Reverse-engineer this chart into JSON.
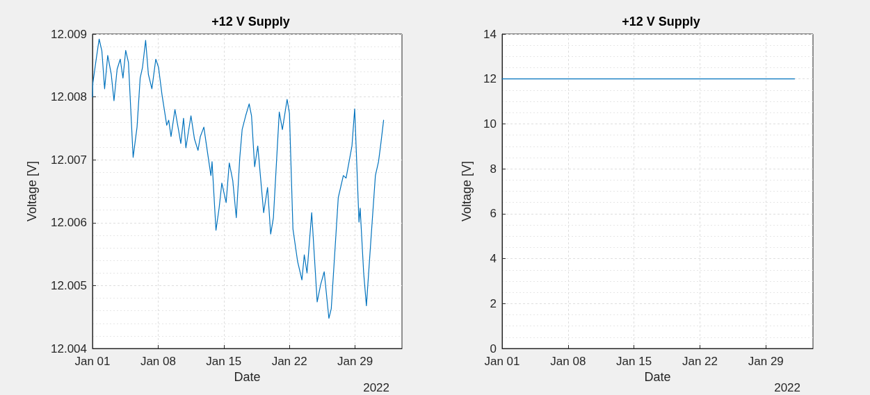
{
  "chart_data": [
    {
      "type": "line",
      "title": "+12 V Supply",
      "xlabel": "Date",
      "ylabel": "Voltage [V]",
      "annotations": [
        "2022"
      ],
      "xlim": [
        "2022-01-01",
        "2022-02-03"
      ],
      "xticks": [
        {
          "value": "2022-01-01",
          "label": "Jan 01"
        },
        {
          "value": "2022-01-08",
          "label": "Jan 08"
        },
        {
          "value": "2022-01-15",
          "label": "Jan 15"
        },
        {
          "value": "2022-01-22",
          "label": "Jan 22"
        },
        {
          "value": "2022-01-29",
          "label": "Jan 29"
        }
      ],
      "ylim": [
        12.004,
        12.009
      ],
      "yticks": [
        12.004,
        12.005,
        12.006,
        12.007,
        12.008,
        12.009
      ],
      "grid": true,
      "series": [
        {
          "color": "#0072bd",
          "x": [
            "2022-01-01T00:00",
            "2022-01-01T01:00",
            "2022-01-01T09:00",
            "2022-01-01T17:00",
            "2022-01-02T00:00",
            "2022-01-02T07:00",
            "2022-01-02T15:00",
            "2022-01-03T00:00",
            "2022-01-03T07:00",
            "2022-01-03T15:00",
            "2022-01-03T23:00",
            "2022-01-04T06:00",
            "2022-01-04T13:00",
            "2022-01-04T20:00",
            "2022-01-05T08:00",
            "2022-01-05T18:00",
            "2022-01-06T02:00",
            "2022-01-06T08:00",
            "2022-01-06T16:00",
            "2022-01-06T23:00",
            "2022-01-07T08:00",
            "2022-01-07T18:00",
            "2022-01-08T01:00",
            "2022-01-08T10:00",
            "2022-01-08T22:00",
            "2022-01-09T03:00",
            "2022-01-09T09:00",
            "2022-01-09T19:00",
            "2022-01-10T04:00",
            "2022-01-10T10:00",
            "2022-01-10T17:00",
            "2022-01-10T23:00",
            "2022-01-11T12:00",
            "2022-01-11T21:00",
            "2022-01-12T06:00",
            "2022-01-12T12:00",
            "2022-01-12T21:00",
            "2022-01-13T03:00",
            "2022-01-13T15:00",
            "2022-01-13T18:00",
            "2022-01-14T04:00",
            "2022-01-14T12:00",
            "2022-01-14T19:00",
            "2022-01-15T06:00",
            "2022-01-15T14:00",
            "2022-01-15T23:00",
            "2022-01-16T08:00",
            "2022-01-16T17:00",
            "2022-01-16T23:00",
            "2022-01-17T08:00",
            "2022-01-17T17:00",
            "2022-01-17T23:00",
            "2022-01-18T07:00",
            "2022-01-18T15:00",
            "2022-01-19T06:00",
            "2022-01-19T16:00",
            "2022-01-20T00:00",
            "2022-01-20T07:00",
            "2022-01-20T22:00",
            "2022-01-21T06:00",
            "2022-01-21T18:00",
            "2022-01-22T00:00",
            "2022-01-22T09:00",
            "2022-01-22T21:00",
            "2022-01-23T08:00",
            "2022-01-23T14:00",
            "2022-01-23T21:00",
            "2022-01-24T09:00",
            "2022-01-24T23:00",
            "2022-01-25T08:00",
            "2022-01-25T17:00",
            "2022-01-26T05:00",
            "2022-01-26T11:00",
            "2022-01-27T05:00",
            "2022-01-27T18:00",
            "2022-01-28T01:00",
            "2022-01-28T16:00",
            "2022-01-28T23:00",
            "2022-01-29T10:00",
            "2022-01-29T13:00",
            "2022-01-29T22:00",
            "2022-01-30T05:00",
            "2022-01-30T16:00",
            "2022-01-31T04:00",
            "2022-01-31T12:00",
            "2022-01-31T18:00",
            "2022-02-01T01:00"
          ],
          "values": [
            12.008,
            12.00822,
            12.00858,
            12.00892,
            12.00873,
            12.00813,
            12.00866,
            12.00836,
            12.00794,
            12.00844,
            12.0086,
            12.0083,
            12.00874,
            12.00855,
            12.00704,
            12.00752,
            12.0083,
            12.00847,
            12.0089,
            12.00836,
            12.00813,
            12.0086,
            12.00847,
            12.00803,
            12.00755,
            12.00763,
            12.00737,
            12.0078,
            12.00748,
            12.00726,
            12.00766,
            12.00719,
            12.0077,
            12.00733,
            12.00715,
            12.00737,
            12.00752,
            12.00726,
            12.00675,
            12.00697,
            12.00588,
            12.00623,
            12.00663,
            12.00632,
            12.00695,
            12.00667,
            12.00608,
            12.00704,
            12.00748,
            12.0077,
            12.00789,
            12.0077,
            12.00689,
            12.00722,
            12.00616,
            12.00656,
            12.00582,
            12.00608,
            12.00776,
            12.00748,
            12.00796,
            12.00774,
            12.0059,
            12.00538,
            12.00509,
            12.00549,
            12.0052,
            12.00616,
            12.00474,
            12.00502,
            12.00522,
            12.00448,
            12.00463,
            12.0064,
            12.00675,
            12.00671,
            12.00722,
            12.00781,
            12.00601,
            12.00623,
            12.0052,
            12.00468,
            12.00568,
            12.00675,
            12.00697,
            12.00726,
            12.00763
          ]
        }
      ]
    },
    {
      "type": "line",
      "title": "+12 V Supply",
      "xlabel": "Date",
      "ylabel": "Voltage [V]",
      "annotations": [
        "2022"
      ],
      "xlim": [
        "2022-01-01",
        "2022-02-03"
      ],
      "xticks": [
        {
          "value": "2022-01-01",
          "label": "Jan 01"
        },
        {
          "value": "2022-01-08",
          "label": "Jan 08"
        },
        {
          "value": "2022-01-15",
          "label": "Jan 15"
        },
        {
          "value": "2022-01-22",
          "label": "Jan 22"
        },
        {
          "value": "2022-01-29",
          "label": "Jan 29"
        }
      ],
      "ylim": [
        0,
        14
      ],
      "yticks": [
        0,
        2,
        4,
        6,
        8,
        10,
        12,
        14
      ],
      "grid": true,
      "series": [
        {
          "color": "#0072bd",
          "x": [
            "2022-01-01T00:00",
            "2022-02-01T01:00"
          ],
          "values": [
            12,
            12
          ]
        }
      ]
    }
  ]
}
